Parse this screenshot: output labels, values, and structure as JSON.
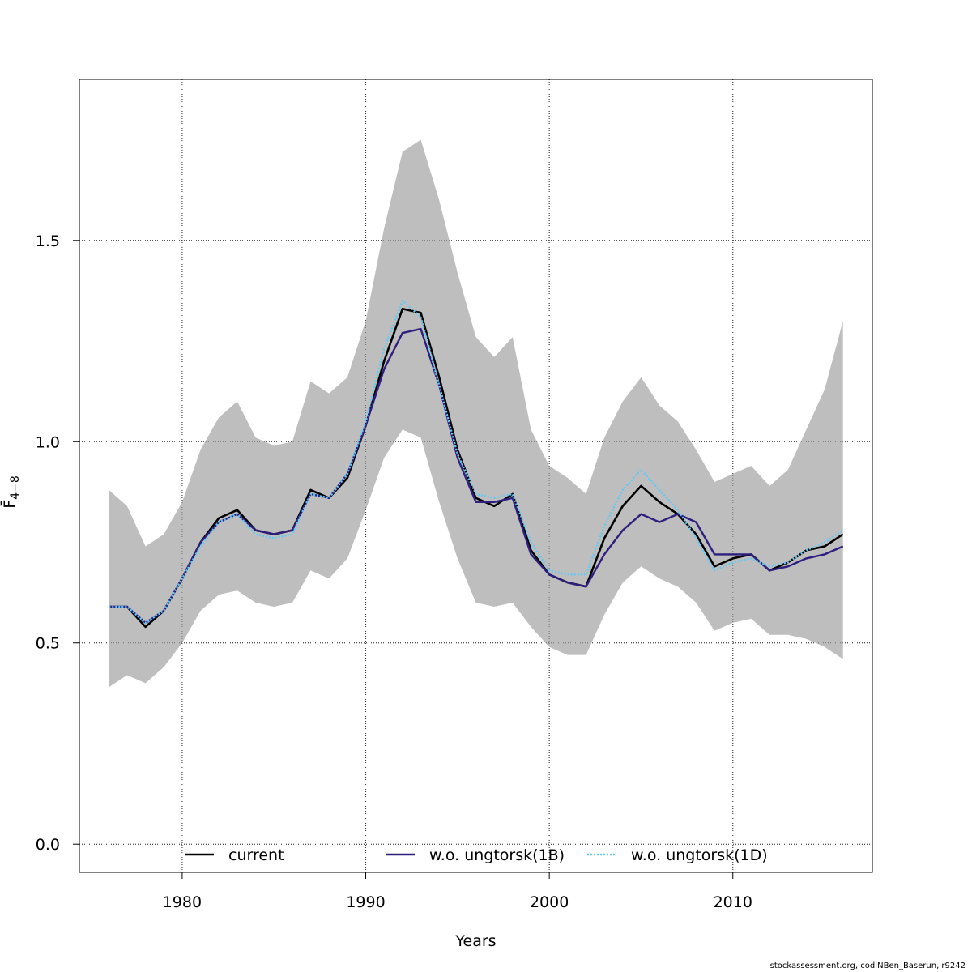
{
  "chart_data": {
    "type": "line",
    "xlabel": "Years",
    "ylabel": "F̄",
    "ylabel_subscript": "4−8",
    "xlim": [
      1974.4,
      2017.6
    ],
    "ylim": [
      -0.07,
      1.9
    ],
    "x_ticks": [
      1980,
      1990,
      2000,
      2010
    ],
    "y_ticks": [
      0.0,
      0.5,
      1.0,
      1.5
    ],
    "x_tick_labels": [
      "1980",
      "1990",
      "2000",
      "2010"
    ],
    "y_tick_labels": [
      "0.0",
      "0.5",
      "1.0",
      "1.5"
    ],
    "grid": true,
    "legend_position": "bottom",
    "x": [
      1976,
      1977,
      1978,
      1979,
      1980,
      1981,
      1982,
      1983,
      1984,
      1985,
      1986,
      1987,
      1988,
      1989,
      1990,
      1991,
      1992,
      1993,
      1994,
      1995,
      1996,
      1997,
      1998,
      1999,
      2000,
      2001,
      2002,
      2003,
      2004,
      2005,
      2006,
      2007,
      2008,
      2009,
      2010,
      2011,
      2012,
      2013,
      2014,
      2015,
      2016
    ],
    "band": {
      "color": "#bebebe",
      "upper": [
        0.88,
        0.84,
        0.74,
        0.77,
        0.85,
        0.98,
        1.06,
        1.1,
        1.01,
        0.99,
        1.0,
        1.15,
        1.12,
        1.16,
        1.3,
        1.53,
        1.72,
        1.75,
        1.6,
        1.42,
        1.26,
        1.21,
        1.26,
        1.03,
        0.94,
        0.91,
        0.87,
        1.01,
        1.1,
        1.16,
        1.09,
        1.05,
        0.98,
        0.9,
        0.92,
        0.94,
        0.89,
        0.93,
        1.03,
        1.13,
        1.3
      ],
      "lower": [
        0.39,
        0.42,
        0.4,
        0.44,
        0.5,
        0.58,
        0.62,
        0.63,
        0.6,
        0.59,
        0.6,
        0.68,
        0.66,
        0.71,
        0.83,
        0.96,
        1.03,
        1.01,
        0.85,
        0.71,
        0.6,
        0.59,
        0.6,
        0.54,
        0.49,
        0.47,
        0.47,
        0.57,
        0.65,
        0.69,
        0.66,
        0.64,
        0.6,
        0.53,
        0.55,
        0.56,
        0.52,
        0.52,
        0.51,
        0.49,
        0.46
      ]
    },
    "series": [
      {
        "name": "current",
        "color": "#000000",
        "dash": "solid",
        "values": [
          0.59,
          0.59,
          0.54,
          0.58,
          0.66,
          0.75,
          0.81,
          0.83,
          0.78,
          0.77,
          0.78,
          0.88,
          0.86,
          0.91,
          1.04,
          1.2,
          1.33,
          1.32,
          1.16,
          0.98,
          0.86,
          0.84,
          0.87,
          0.73,
          0.67,
          0.65,
          0.64,
          0.76,
          0.84,
          0.89,
          0.85,
          0.82,
          0.77,
          0.69,
          0.71,
          0.72,
          0.68,
          0.7,
          0.73,
          0.74,
          0.77
        ]
      },
      {
        "name": "w.o. ungtorsk(1B)",
        "color": "#2e1f7f",
        "dash": "dash",
        "values": [
          0.59,
          0.59,
          0.55,
          0.58,
          0.66,
          0.75,
          0.8,
          0.82,
          0.78,
          0.77,
          0.78,
          0.87,
          0.86,
          0.92,
          1.04,
          1.18,
          1.27,
          1.28,
          1.14,
          0.96,
          0.85,
          0.85,
          0.86,
          0.72,
          0.67,
          0.65,
          0.64,
          0.72,
          0.78,
          0.82,
          0.8,
          0.82,
          0.8,
          0.72,
          0.72,
          0.72,
          0.68,
          0.69,
          0.71,
          0.72,
          0.74
        ]
      },
      {
        "name": "w.o. ungtorsk(1D)",
        "color": "#62c9f5",
        "dash": "dot",
        "values": [
          0.59,
          0.59,
          0.55,
          0.58,
          0.66,
          0.74,
          0.8,
          0.82,
          0.77,
          0.76,
          0.77,
          0.87,
          0.86,
          0.92,
          1.05,
          1.23,
          1.35,
          1.31,
          1.14,
          0.97,
          0.87,
          0.86,
          0.87,
          0.75,
          0.68,
          0.67,
          0.67,
          0.79,
          0.88,
          0.93,
          0.88,
          0.83,
          0.76,
          0.68,
          0.7,
          0.71,
          0.69,
          0.7,
          0.73,
          0.75,
          0.78
        ]
      }
    ]
  },
  "footer": "stockassessment.org, codINBen_Baserun, r9242"
}
